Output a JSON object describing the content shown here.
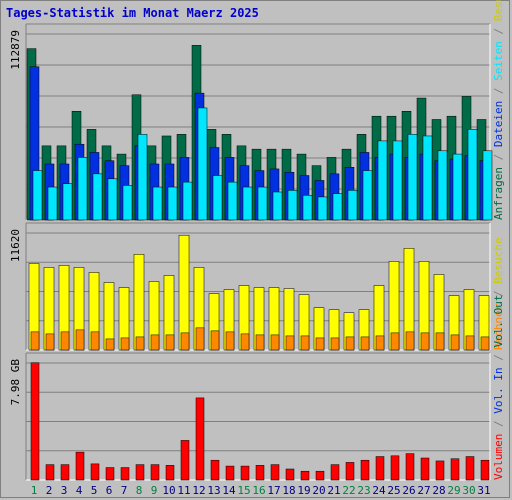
{
  "title": "Tages-Statistik im Monat Maerz 2025",
  "colors": {
    "anfragen": "#006b46",
    "dateien": "#0030e0",
    "seiten": "#00e6ff",
    "besuche": "#ffff00",
    "rechner": "#ff8800",
    "volumen": "#ff0000",
    "weekday_label": "#000080",
    "weekend_label": "#008040"
  },
  "chart_data": [
    {
      "type": "bar",
      "panel": "top",
      "max_label": "112879",
      "right_labels": [
        {
          "text": "Anfragen",
          "color": "#006b46"
        },
        {
          "text": " / ",
          "color": "#808080"
        },
        {
          "text": "Dateien",
          "color": "#0030e0"
        },
        {
          "text": " / ",
          "color": "#808080"
        },
        {
          "text": "Seiten",
          "color": "#00e6ff"
        },
        {
          "text": " / ",
          "color": "#808080"
        },
        {
          "text": "Besuche",
          "color": "#cccc00"
        }
      ],
      "ymax": 112879,
      "series": [
        {
          "name": "Anfragen",
          "values": [
            104000,
            45000,
            45000,
            66000,
            55000,
            45000,
            40000,
            76000,
            45000,
            51000,
            52000,
            106000,
            55000,
            52000,
            45000,
            43000,
            43000,
            43000,
            40000,
            33000,
            38000,
            43000,
            52000,
            63000,
            63000,
            66000,
            74000,
            61000,
            63000,
            75000,
            61000
          ]
        },
        {
          "name": "Dateien",
          "values": [
            93000,
            34000,
            34000,
            46000,
            41000,
            36000,
            33000,
            45000,
            34000,
            34000,
            38000,
            77000,
            44000,
            38000,
            33000,
            30000,
            31000,
            29000,
            27000,
            24000,
            28000,
            32000,
            41000,
            38000,
            40000,
            38000,
            40000,
            36000,
            37000,
            39000,
            36000
          ]
        },
        {
          "name": "Seiten",
          "values": [
            30000,
            20000,
            22000,
            38000,
            28000,
            25000,
            21000,
            52000,
            20000,
            20000,
            23000,
            68000,
            27000,
            23000,
            20000,
            20000,
            17000,
            18000,
            15000,
            14000,
            16000,
            18000,
            30000,
            48000,
            48000,
            52000,
            51000,
            42000,
            40000,
            55000,
            42000
          ]
        }
      ],
      "categories": [
        "1",
        "2",
        "3",
        "4",
        "5",
        "6",
        "7",
        "8",
        "9",
        "10",
        "11",
        "12",
        "13",
        "14",
        "15",
        "16",
        "17",
        "18",
        "19",
        "20",
        "21",
        "22",
        "23",
        "24",
        "25",
        "26",
        "27",
        "28",
        "29",
        "30",
        "31"
      ]
    },
    {
      "type": "bar",
      "panel": "middle",
      "max_label": "11620",
      "right_labels": [
        {
          "text": "Rechner",
          "color": "#ff8800"
        },
        {
          "text": " / ",
          "color": "#808080"
        },
        {
          "text": "Besuche",
          "color": "#cccc00"
        }
      ],
      "ymax": 11620,
      "series": [
        {
          "name": "Besuche",
          "values": [
            8600,
            8200,
            8400,
            8200,
            7700,
            6700,
            6200,
            9500,
            6800,
            7400,
            11400,
            8200,
            5600,
            6000,
            6400,
            6200,
            6200,
            6100,
            5500,
            4200,
            4000,
            3700,
            4000,
            6400,
            8800,
            10100,
            8800,
            7500,
            5400,
            6000,
            5400
          ]
        },
        {
          "name": "Rechner",
          "values": [
            1800,
            1600,
            1800,
            2000,
            1800,
            1100,
            1200,
            1300,
            1500,
            1500,
            1700,
            2200,
            1900,
            1800,
            1600,
            1500,
            1500,
            1400,
            1400,
            1200,
            1200,
            1300,
            1300,
            1400,
            1700,
            1800,
            1700,
            1700,
            1500,
            1400,
            1300
          ]
        }
      ]
    },
    {
      "type": "bar",
      "panel": "bottom",
      "max_label": "7.98 GB",
      "right_labels": [
        {
          "text": "Volumen",
          "color": "#ff0000"
        },
        {
          "text": " / ",
          "color": "#808080"
        },
        {
          "text": "Vol. In",
          "color": "#0030e0"
        },
        {
          "text": " / ",
          "color": "#808080"
        },
        {
          "text": "Vol. Out",
          "color": "#006b46"
        }
      ],
      "ymax": 7.98,
      "series": [
        {
          "name": "Volumen",
          "values": [
            8.0,
            1.05,
            1.05,
            1.9,
            1.1,
            0.85,
            0.85,
            1.05,
            1.05,
            1.0,
            2.7,
            5.6,
            1.35,
            0.95,
            0.95,
            1.0,
            1.05,
            0.75,
            0.6,
            0.6,
            1.05,
            1.2,
            1.35,
            1.6,
            1.65,
            1.8,
            1.5,
            1.3,
            1.45,
            1.6,
            1.35
          ]
        }
      ]
    }
  ],
  "x_labels": [
    "1",
    "2",
    "3",
    "4",
    "5",
    "6",
    "7",
    "8",
    "9",
    "10",
    "11",
    "12",
    "13",
    "14",
    "15",
    "16",
    "17",
    "18",
    "19",
    "20",
    "21",
    "22",
    "23",
    "24",
    "25",
    "26",
    "27",
    "28",
    "29",
    "30",
    "31"
  ],
  "weekend_days": [
    1,
    8,
    9,
    15,
    16,
    22,
    23,
    29,
    30
  ]
}
